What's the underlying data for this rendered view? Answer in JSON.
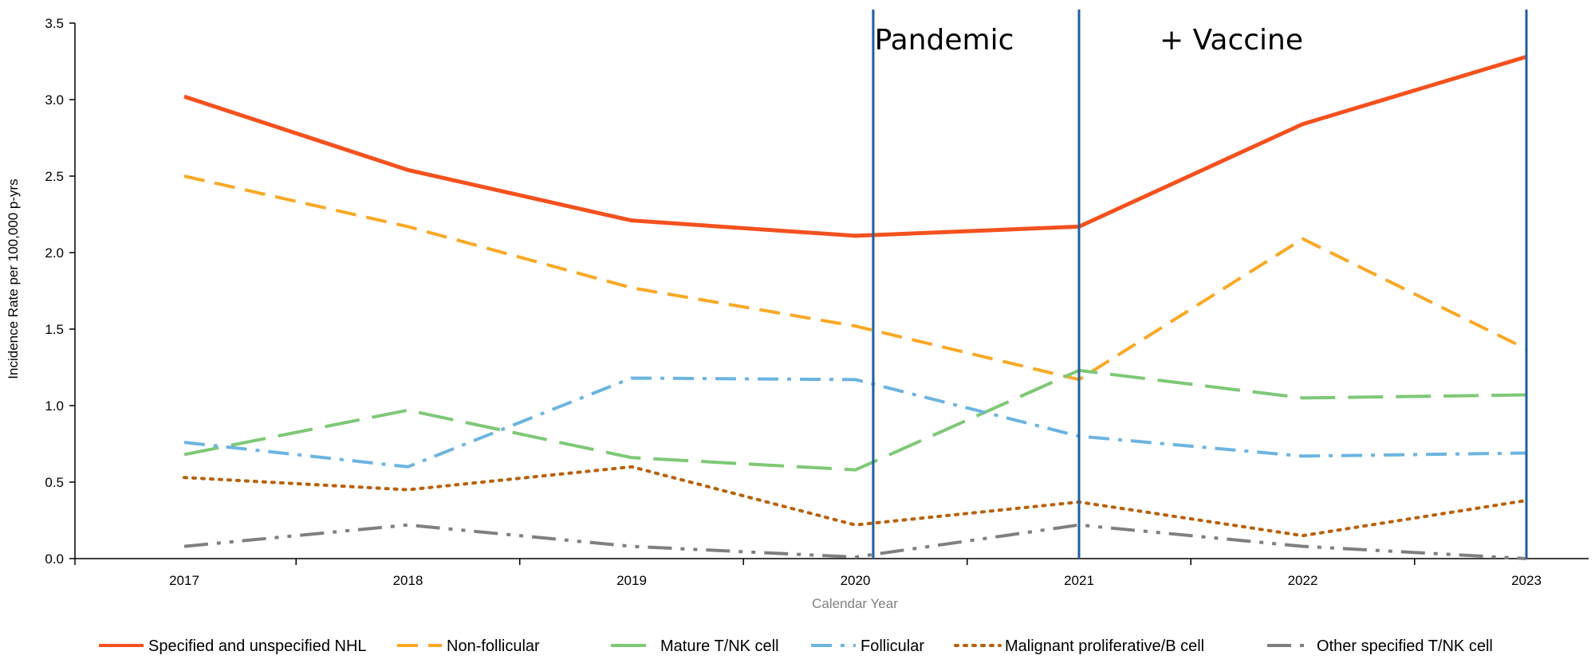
{
  "chart_data": {
    "type": "line",
    "title": "",
    "xlabel": "Calendar Year",
    "ylabel": "Incidence Rate per 100,000 p-yrs",
    "x": [
      "2017",
      "2018",
      "2019",
      "2020",
      "2021",
      "2022",
      "2023"
    ],
    "ylim": [
      0,
      3.5
    ],
    "yticks": [
      "0.0",
      "0.5",
      "1.0",
      "1.5",
      "2.0",
      "2.5",
      "3.0",
      "3.5"
    ],
    "grid": false,
    "legend_position": "bottom",
    "series": [
      {
        "name": "Specified and unspecified NHL",
        "color": "#f4511e",
        "style": "solid",
        "values": [
          3.02,
          2.54,
          2.21,
          2.11,
          2.17,
          2.84,
          3.28
        ]
      },
      {
        "name": "Non-follicular",
        "color": "#f9a825",
        "style": "dashed",
        "values": [
          2.5,
          2.17,
          1.77,
          1.52,
          1.17,
          2.09,
          1.37
        ]
      },
      {
        "name": "Mature T/NK cell",
        "color": "#7ec876",
        "style": "longdash",
        "values": [
          0.68,
          0.97,
          0.66,
          0.58,
          1.23,
          1.05,
          1.07
        ]
      },
      {
        "name": "Follicular",
        "color": "#6cb4e0",
        "style": "dashdot",
        "values": [
          0.76,
          0.6,
          1.18,
          1.17,
          0.8,
          0.67,
          0.69
        ]
      },
      {
        "name": "Malignant proliferative/B cell",
        "color": "#b8600a",
        "style": "dotted",
        "values": [
          0.53,
          0.45,
          0.6,
          0.22,
          0.37,
          0.15,
          0.38
        ]
      },
      {
        "name": "Other specified T/NK cell",
        "color": "#7f7f7f",
        "style": "longdashdotdot",
        "values": [
          0.08,
          0.22,
          0.08,
          0.01,
          0.22,
          0.08,
          0.0
        ]
      }
    ],
    "vertical_lines": {
      "color": "#1f5f9f",
      "at": [
        2020.08,
        2021.0,
        2023.0
      ]
    },
    "annotations": [
      {
        "text": "Pandemic"
      },
      {
        "text": "+ Vaccine"
      }
    ]
  }
}
